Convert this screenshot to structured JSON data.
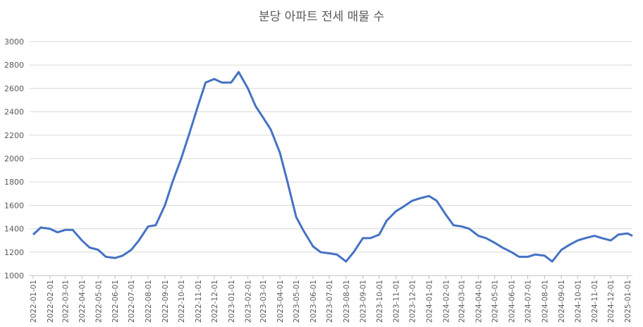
{
  "chart_data": {
    "type": "line",
    "title": "분당 아파트 전세 매물 수",
    "x": [
      "2022-01-01",
      "2022-01-15",
      "2022-02-01",
      "2022-02-15",
      "2022-03-01",
      "2022-03-15",
      "2022-04-01",
      "2022-04-15",
      "2022-05-01",
      "2022-05-15",
      "2022-06-01",
      "2022-06-15",
      "2022-07-01",
      "2022-07-15",
      "2022-08-01",
      "2022-08-15",
      "2022-09-01",
      "2022-09-15",
      "2022-10-01",
      "2022-10-15",
      "2022-11-01",
      "2022-11-15",
      "2022-12-01",
      "2022-12-15",
      "2023-01-01",
      "2023-01-15",
      "2023-02-01",
      "2023-02-15",
      "2023-03-01",
      "2023-03-15",
      "2023-04-01",
      "2023-04-15",
      "2023-05-01",
      "2023-05-15",
      "2023-06-01",
      "2023-06-15",
      "2023-07-01",
      "2023-07-15",
      "2023-08-01",
      "2023-08-15",
      "2023-09-01",
      "2023-09-15",
      "2023-10-01",
      "2023-10-15",
      "2023-11-01",
      "2023-11-15",
      "2023-12-01",
      "2023-12-15",
      "2024-01-01",
      "2024-01-15",
      "2024-02-01",
      "2024-02-15",
      "2024-03-01",
      "2024-03-15",
      "2024-04-01",
      "2024-04-15",
      "2024-05-01",
      "2024-05-15",
      "2024-06-01",
      "2024-06-15",
      "2024-07-01",
      "2024-07-15",
      "2024-08-01",
      "2024-08-15",
      "2024-09-01",
      "2024-09-15",
      "2024-10-01",
      "2024-10-15",
      "2024-11-01",
      "2024-11-15",
      "2024-12-01",
      "2024-12-15",
      "2025-01-01",
      "2025-01-10"
    ],
    "series": [
      {
        "name": "매물 수",
        "color": "#4472c4",
        "values": [
          1350,
          1410,
          1400,
          1370,
          1390,
          1390,
          1300,
          1240,
          1220,
          1160,
          1150,
          1170,
          1220,
          1300,
          1420,
          1430,
          1600,
          1800,
          2000,
          2200,
          2450,
          2650,
          2680,
          2650,
          2650,
          2740,
          2600,
          2450,
          2350,
          2250,
          2050,
          1800,
          1500,
          1380,
          1250,
          1200,
          1190,
          1180,
          1120,
          1200,
          1320,
          1320,
          1350,
          1470,
          1550,
          1590,
          1640,
          1660,
          1680,
          1640,
          1520,
          1430,
          1420,
          1400,
          1340,
          1320,
          1280,
          1240,
          1200,
          1160,
          1160,
          1180,
          1170,
          1120,
          1220,
          1260,
          1300,
          1320,
          1340,
          1320,
          1300,
          1350,
          1360,
          1340
        ]
      }
    ],
    "xlim": [
      "2022-01-01",
      "2025-01-10"
    ],
    "xticks": [
      "2022-01-01",
      "2022-02-01",
      "2022-03-01",
      "2022-04-01",
      "2022-05-01",
      "2022-06-01",
      "2022-07-01",
      "2022-08-01",
      "2022-09-01",
      "2022-10-01",
      "2022-11-01",
      "2022-12-01",
      "2023-01-01",
      "2023-02-01",
      "2023-03-01",
      "2023-04-01",
      "2023-05-01",
      "2023-06-01",
      "2023-07-01",
      "2023-08-01",
      "2023-09-01",
      "2023-10-01",
      "2023-11-01",
      "2023-12-01",
      "2024-01-01",
      "2024-02-01",
      "2024-03-01",
      "2024-04-01",
      "2024-05-01",
      "2024-06-01",
      "2024-07-01",
      "2024-08-01",
      "2024-09-01",
      "2024-10-01",
      "2024-11-01",
      "2024-12-01",
      "2025-01-01"
    ],
    "ylim": [
      1000,
      3000
    ],
    "yticks": [
      1000,
      1200,
      1400,
      1600,
      1800,
      2000,
      2200,
      2400,
      2600,
      2800,
      3000
    ],
    "grid": true
  }
}
